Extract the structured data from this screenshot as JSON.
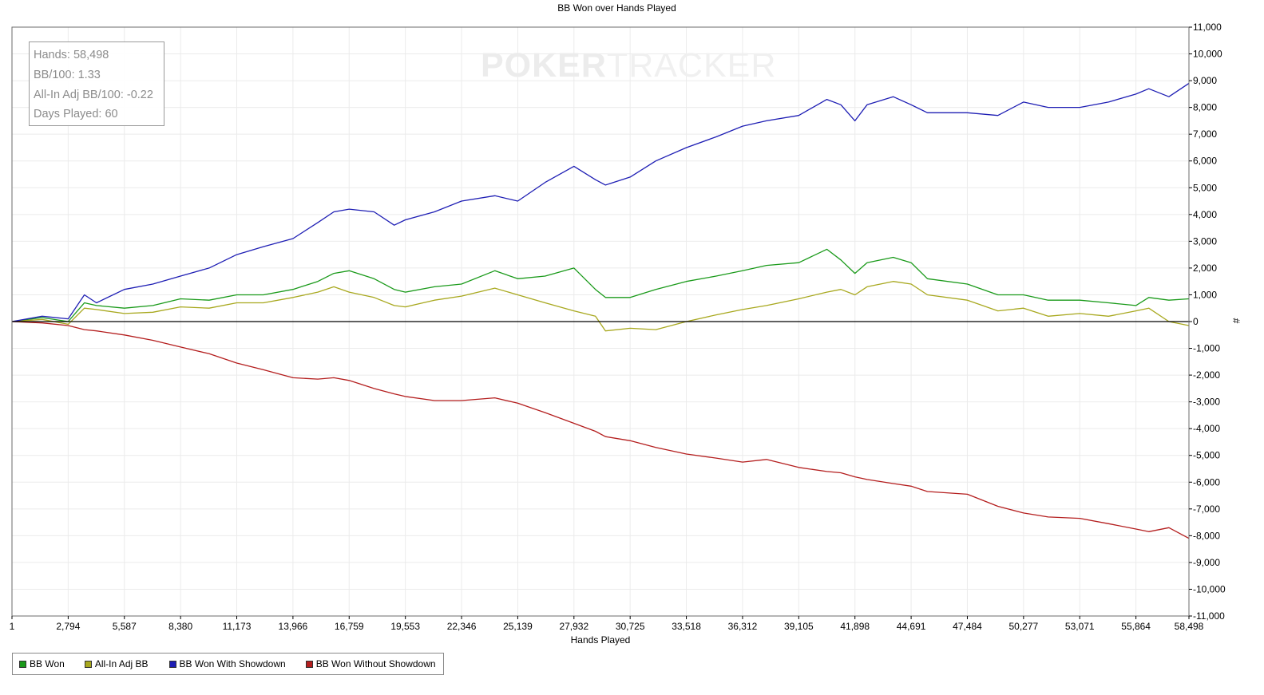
{
  "watermark": {
    "part1": "POKER",
    "part2": "TRACKER"
  },
  "stats": [
    {
      "label": "Hands: 58,498"
    },
    {
      "label": "BB/100: 1.33"
    },
    {
      "label": "All-In Adj BB/100: -0.22"
    },
    {
      "label": "Days Played: 60"
    }
  ],
  "chart_data": {
    "type": "line",
    "title": "BB Won over Hands Played",
    "xlabel": "Hands Played",
    "ylabel": "#",
    "xlim": [
      1,
      58498
    ],
    "ylim": [
      -11000,
      11000
    ],
    "x_ticks": [
      1,
      2794,
      5587,
      8380,
      11173,
      13966,
      16759,
      19553,
      22346,
      25139,
      27932,
      30725,
      33518,
      36312,
      39105,
      41898,
      44691,
      47484,
      50277,
      53071,
      55864,
      58498
    ],
    "x_tick_labels": [
      "1",
      "2,794",
      "5,587",
      "8,380",
      "11,173",
      "13,966",
      "16,759",
      "19,553",
      "22,346",
      "25,139",
      "27,932",
      "30,725",
      "33,518",
      "36,312",
      "39,105",
      "41,898",
      "44,691",
      "47,484",
      "50,277",
      "53,071",
      "55,864",
      "58,498"
    ],
    "y_ticks": [
      11000,
      10000,
      9000,
      8000,
      7000,
      6000,
      5000,
      4000,
      3000,
      2000,
      1000,
      0,
      -1000,
      -2000,
      -3000,
      -4000,
      -5000,
      -6000,
      -7000,
      -8000,
      -9000,
      -10000,
      -11000
    ],
    "y_tick_labels": [
      "11,000",
      "10,000",
      "9,000",
      "8,000",
      "7,000",
      "6,000",
      "5,000",
      "4,000",
      "3,000",
      "2,000",
      "1,000",
      "0",
      "-1,000",
      "-2,000",
      "-3,000",
      "-4,000",
      "-5,000",
      "-6,000",
      "-7,000",
      "-8,000",
      "-9,000",
      "-10,000",
      "-11,000"
    ],
    "grid": true,
    "legend_position": "bottom-left",
    "x": [
      1,
      1500,
      2794,
      3600,
      4200,
      5587,
      7000,
      8380,
      9800,
      11173,
      12500,
      13966,
      15200,
      16000,
      16759,
      18000,
      19000,
      19553,
      21000,
      22346,
      24000,
      25139,
      26500,
      27932,
      29000,
      29500,
      30725,
      32000,
      33518,
      35000,
      36312,
      37500,
      39105,
      40500,
      41200,
      41898,
      42500,
      43800,
      44691,
      45500,
      47484,
      49000,
      50277,
      51500,
      53071,
      54500,
      55864,
      56500,
      57500,
      58498
    ],
    "series": [
      {
        "name": "BB Won",
        "color": "#1a9a1a",
        "values": [
          0,
          150,
          0,
          700,
          600,
          500,
          600,
          850,
          800,
          1000,
          1000,
          1200,
          1500,
          1800,
          1900,
          1600,
          1200,
          1100,
          1300,
          1400,
          1900,
          1600,
          1700,
          2000,
          1200,
          900,
          900,
          1200,
          1500,
          1700,
          1900,
          2100,
          2200,
          2700,
          2300,
          1800,
          2200,
          2400,
          2200,
          1600,
          1400,
          1000,
          1000,
          800,
          800,
          700,
          600,
          900,
          800,
          850
        ]
      },
      {
        "name": "All-In Adj BB",
        "color": "#a8a81e",
        "values": [
          0,
          80,
          -100,
          500,
          450,
          300,
          350,
          550,
          500,
          700,
          700,
          900,
          1100,
          1300,
          1100,
          900,
          600,
          550,
          800,
          950,
          1250,
          1000,
          700,
          400,
          200,
          -350,
          -250,
          -300,
          0,
          250,
          450,
          600,
          850,
          1100,
          1200,
          1000,
          1300,
          1500,
          1400,
          1000,
          800,
          400,
          500,
          200,
          300,
          200,
          400,
          500,
          0,
          -150
        ]
      },
      {
        "name": "BB Won With Showdown",
        "color": "#1e1eb4",
        "values": [
          0,
          200,
          100,
          1000,
          700,
          1200,
          1400,
          1700,
          2000,
          2500,
          2800,
          3100,
          3700,
          4100,
          4200,
          4100,
          3600,
          3800,
          4100,
          4500,
          4700,
          4500,
          5200,
          5800,
          5300,
          5100,
          5400,
          6000,
          6500,
          6900,
          7300,
          7500,
          7700,
          8300,
          8100,
          7500,
          8100,
          8400,
          8100,
          7800,
          7800,
          7700,
          8200,
          8000,
          8000,
          8200,
          8500,
          8700,
          8400,
          8900
        ]
      },
      {
        "name": "BB Won Without Showdown",
        "color": "#b41e1e",
        "values": [
          0,
          -50,
          -150,
          -300,
          -350,
          -500,
          -700,
          -950,
          -1200,
          -1550,
          -1800,
          -2100,
          -2150,
          -2100,
          -2200,
          -2500,
          -2700,
          -2800,
          -2950,
          -2950,
          -2850,
          -3050,
          -3400,
          -3800,
          -4100,
          -4300,
          -4450,
          -4700,
          -4950,
          -5100,
          -5250,
          -5150,
          -5450,
          -5600,
          -5650,
          -5800,
          -5900,
          -6050,
          -6150,
          -6350,
          -6450,
          -6900,
          -7150,
          -7300,
          -7350,
          -7550,
          -7750,
          -7850,
          -7700,
          -8100
        ]
      }
    ]
  }
}
